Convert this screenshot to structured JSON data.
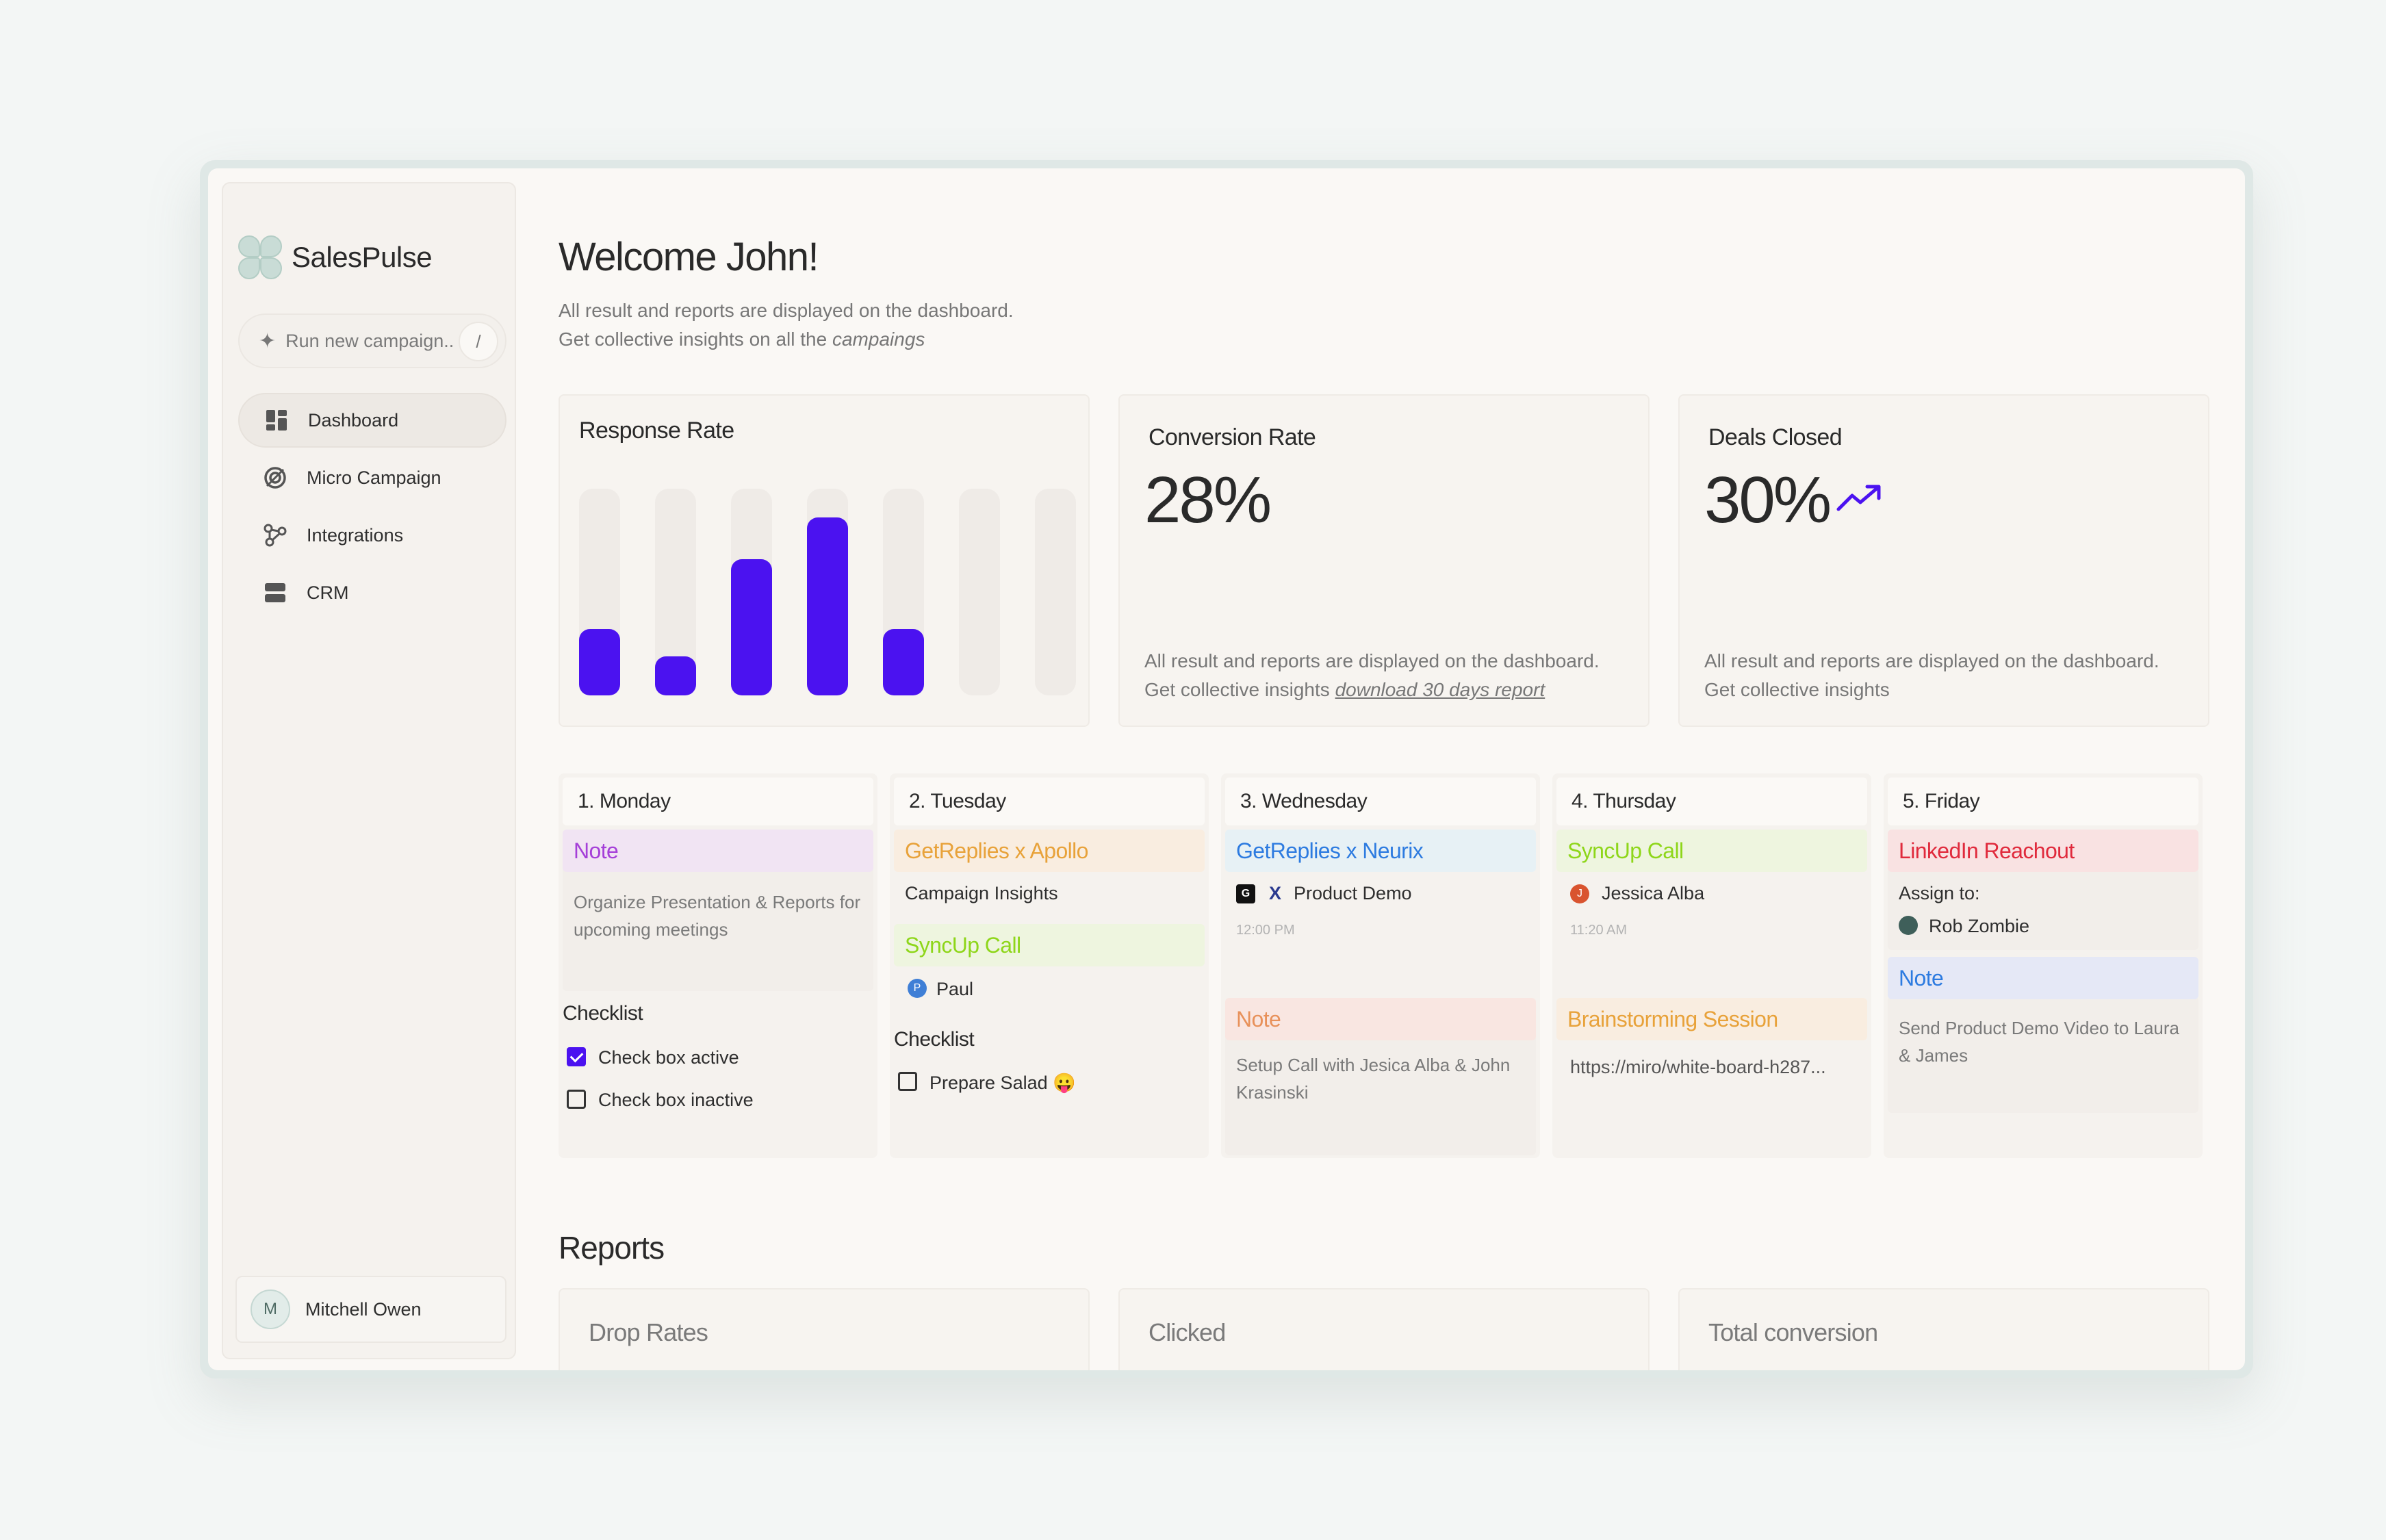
{
  "brand": {
    "name": "SalesPulse"
  },
  "search": {
    "placeholder": "Run new campaign..",
    "shortcut": "/"
  },
  "sidebar": {
    "items": [
      {
        "label": "Dashboard",
        "icon": "dashboard-icon",
        "active": true
      },
      {
        "label": "Micro Campaign",
        "icon": "campaign-icon"
      },
      {
        "label": "Integrations",
        "icon": "integrations-icon"
      },
      {
        "label": "CRM",
        "icon": "crm-icon"
      }
    ],
    "user": {
      "initial": "M",
      "name": "Mitchell Owen"
    }
  },
  "header": {
    "title": "Welcome John!",
    "line1": "All result and reports are displayed on the dashboard.",
    "line2_prefix": "Get collective insights on all the ",
    "line2_em": "campaings"
  },
  "cards": {
    "response": {
      "title": "Response Rate"
    },
    "conversion": {
      "title": "Conversion Rate",
      "value": "28%",
      "desc1": "All result and reports are displayed on the dashboard.",
      "desc2_prefix": "Get collective insights ",
      "desc2_link": "download 30 days report"
    },
    "deals": {
      "title": "Deals Closed",
      "value": "30%",
      "desc1": "All result and reports are displayed on the dashboard.",
      "desc2": "Get collective insights"
    }
  },
  "chart_data": {
    "type": "bar",
    "values": [
      0.32,
      0.19,
      0.66,
      0.86,
      0.32,
      0,
      0
    ],
    "color": "#4b12f0",
    "track_color": "#efebe7"
  },
  "week": {
    "monday": {
      "head": "1. Monday",
      "note_tag": "Note",
      "note_text": "Organize Presentation & Reports for upcoming meetings",
      "checklist_title": "Checklist",
      "check1": "Check box active",
      "check2": "Check box inactive"
    },
    "tuesday": {
      "head": "2. Tuesday",
      "tag1": "GetReplies x Apollo",
      "tag1_text": "Campaign Insights",
      "tag2": "SyncUp Call",
      "person": "Paul",
      "person_initial": "P",
      "checklist_title": "Checklist",
      "check1": "Prepare Salad 😛"
    },
    "wednesday": {
      "head": "3. Wednesday",
      "tag1": "GetReplies x Neurix",
      "item": "Product Demo",
      "time": "12:00 PM",
      "tag2": "Note",
      "note_text": "Setup Call with Jesica Alba & John Krasinski"
    },
    "thursday": {
      "head": "4. Thursday",
      "tag1": "SyncUp Call",
      "person": "Jessica Alba",
      "person_initial": "J",
      "time": "11:20 AM",
      "tag2": "Brainstorming Session",
      "link": "https://miro/white-board-h287..."
    },
    "friday": {
      "head": "5. Friday",
      "tag1": "LinkedIn Reachout",
      "assign_label": "Assign to:",
      "person": "Rob Zombie",
      "tag2": "Note",
      "note_text": "Send Product Demo Video to Laura & James"
    }
  },
  "reports": {
    "title": "Reports",
    "cards": [
      "Drop Rates",
      "Clicked",
      "Total conversion"
    ]
  },
  "colors": {
    "accent": "#4b12f0",
    "purple_tag": "#a53fd8",
    "orange_tag": "#e8a23a",
    "green_tag": "#8ed61a",
    "blue_tag": "#2d7be0",
    "coral_tag": "#e8915a",
    "red_tag": "#e02a3c"
  }
}
